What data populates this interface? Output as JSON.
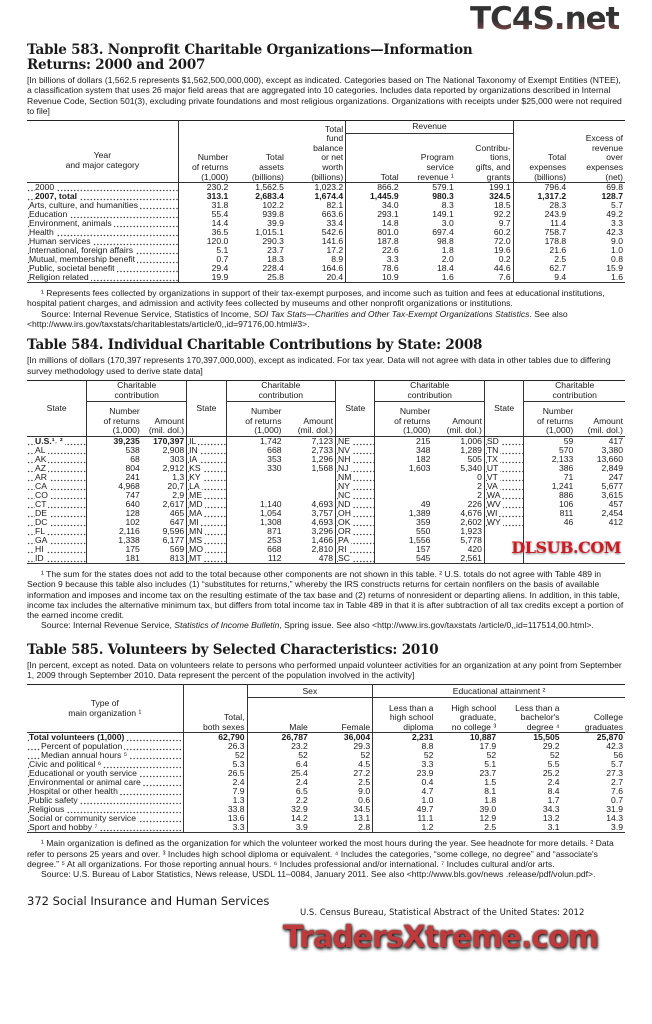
{
  "t583": {
    "title": "Table 583. Nonprofit Charitable Organizations—Information Returns: 2000 and 2007",
    "headnote": "[In billions of dollars (1,562.5 represents $1,562,500,000,000), except as indicated. Categories based on The National Taxonomy of Exempt Entities (NTEE), a classification system that uses 26 major field areas that are aggregated into 10 categories. Includes data reported by organizations described in Internal Revenue Code, Section 501(3), excluding private foundations and most religious organizations. Organizations with receipts under $25,000 were not required to file]",
    "h": {
      "label": "Year\nand major category",
      "returns": "Number\nof returns\n(1,000)",
      "assets": "Total\nassets\n(billions)",
      "fund": "Total\nfund\nbalance\nor net\nworth\n(billions)",
      "revenue": "Revenue",
      "rev_total": "Total",
      "program": "Program\nservice\nrevenue ¹",
      "contrib": "Contribu-\ntions,\ngifts, and\ngrants",
      "expenses": "Total\nexpenses\n(billions)",
      "excess": "Excess of\nrevenue\nover\nexpenses\n(net)"
    },
    "rows": [
      [
        "2000",
        "230.2",
        "1,562.5",
        "1,023.2",
        "866.2",
        "579.1",
        "199.1",
        "796.4",
        "69.8"
      ],
      [
        "2007, total",
        "313.1",
        "2,683.4",
        "1,674.4",
        "1,445.9",
        "980.3",
        "324.5",
        "1,317.2",
        "128.7"
      ],
      [
        "Arts, culture, and humanities",
        "31.8",
        "102.2",
        "82.1",
        "34.0",
        "8.3",
        "18.5",
        "28.3",
        "5.7"
      ],
      [
        "Education",
        "55.4",
        "939.8",
        "663.6",
        "293.1",
        "149.1",
        "92.2",
        "243.9",
        "49.2"
      ],
      [
        "Environment, animals",
        "14.4",
        "39.9",
        "33.4",
        "14.8",
        "3.0",
        "9.7",
        "11.4",
        "3.3"
      ],
      [
        "Health",
        "36.5",
        "1,015.1",
        "542.6",
        "801.0",
        "697.4",
        "60.2",
        "758.7",
        "42.3"
      ],
      [
        "Human services",
        "120.0",
        "290.3",
        "141.6",
        "187.8",
        "98.8",
        "72.0",
        "178.8",
        "9.0"
      ],
      [
        "International, foreign affairs",
        "5.1",
        "23.7",
        "17.2",
        "22.6",
        "1.8",
        "19.6",
        "21.6",
        "1.0"
      ],
      [
        "Mutual, membership benefit",
        "0.7",
        "18.3",
        "8.9",
        "3.3",
        "2.0",
        "0.2",
        "2.5",
        "0.8"
      ],
      [
        "Public, societal benefit",
        "29.4",
        "228.4",
        "164.6",
        "78.6",
        "18.4",
        "44.6",
        "62.7",
        "15.9"
      ],
      [
        "Religion related",
        "19.9",
        "25.8",
        "20.4",
        "10.9",
        "1.6",
        "7.6",
        "9.4",
        "1.6"
      ]
    ],
    "footnote": "¹ Represents fees collected by organizations in support of their tax-exempt purposes, and income such as tuition and fees at educational institutions, hospital patient charges, and admission and activity fees collected by museums and other nonprofit organizations or institutions.",
    "source_a": "Source: Internal Revenue Service, Statistics of Income, ",
    "source_i": "SOI Tax Stats—Charities and Other Tax-Exempt Organizations Statistics",
    "source_b": ". See also <http://www.irs.gov/taxstats/charitablestats/article/0,,id=97176,00.html#3>."
  },
  "t584": {
    "title": "Table 584. Individual Charitable Contributions by State: 2008",
    "headnote": "[In millions of dollars (170,397 represents 170,397,000,000), except as indicated. For tax year. Data will not agree with data in other tables due to differing survey methodology used to derive state data]",
    "h": {
      "state": "State",
      "group": "Charitable\ncontribution",
      "num": "Number\nof returns\n(1,000)",
      "amt": "Amount\n(mil. dol.)"
    },
    "rows": [
      [
        "U.S.¹˒ ²",
        "39,235",
        "170,397",
        "IL",
        "1,742",
        "7,123",
        "NE",
        "215",
        "1,006",
        "SD",
        "59",
        "417"
      ],
      [
        "AL",
        "538",
        "2,908",
        "IN",
        "668",
        "2,733",
        "NV",
        "348",
        "1,289",
        "TN",
        "570",
        "3,380"
      ],
      [
        "AK",
        "68",
        "303",
        "IA",
        "353",
        "1,296",
        "NH",
        "182",
        "505",
        "TX",
        "2,133",
        "13,660"
      ],
      [
        "AZ",
        "804",
        "2,912",
        "KS",
        "330",
        "1,568",
        "NJ",
        "1,603",
        "5,340",
        "UT",
        "386",
        "2,849"
      ],
      [
        "AR",
        "241",
        "1,3",
        "KY",
        "",
        "",
        "NM",
        "",
        "0",
        "VT",
        "71",
        "247"
      ],
      [
        "CA",
        "4,968",
        "20,7",
        "LA",
        "",
        "",
        "NY",
        "",
        "2",
        "VA",
        "1,241",
        "5,677"
      ],
      [
        "CO",
        "747",
        "2,9",
        "ME",
        "",
        "",
        "NC",
        "",
        "2",
        "WA",
        "886",
        "3,615"
      ],
      [
        "CT",
        "640",
        "2,617",
        "MD",
        "1,140",
        "4,693",
        "ND",
        "49",
        "226",
        "WV",
        "106",
        "457"
      ],
      [
        "DE",
        "128",
        "465",
        "MA",
        "1,054",
        "3,757",
        "OH",
        "1,389",
        "4,676",
        "WI",
        "811",
        "2,454"
      ],
      [
        "DC",
        "102",
        "647",
        "MI",
        "1,308",
        "4,693",
        "OK",
        "359",
        "2,602",
        "WY",
        "46",
        "412"
      ],
      [
        "FL",
        "2,116",
        "9,596",
        "MN",
        "871",
        "3,296",
        "OR",
        "550",
        "1,923",
        "",
        "",
        ""
      ],
      [
        "GA",
        "1,338",
        "6,177",
        "MS",
        "253",
        "1,466",
        "PA",
        "1,556",
        "5,778",
        "",
        "",
        ""
      ],
      [
        "HI",
        "175",
        "569",
        "MO",
        "668",
        "2,810",
        "RI",
        "157",
        "420",
        "",
        "",
        ""
      ],
      [
        "ID",
        "181",
        "813",
        "MT",
        "112",
        "478",
        "SC",
        "545",
        "2,561",
        "",
        "",
        ""
      ]
    ],
    "footnote": "¹ The sum for the states does not add to the total because other components are not shown in this table. ² U.S. totals do not agree with Table 489 in Section 9 because this table also includes (1) “substitutes for returns,” whereby the IRS constructs returns for certain nonfilers on the basis of available information and imposes and income tax on the resulting estimate of the tax base and (2) returns of nonresident or departing aliens. In addition, in this table, income tax includes the alternative minimum tax, but differs from total income tax in Table 489 in that it is after subtraction of all tax credits except a portion of the earned income credit.",
    "source_a": "Source: Internal Revenue Service, ",
    "source_i": "Statistics of Income Bulletin",
    "source_b": ", Spring issue. See also <http://www.irs.gov/taxstats /article/0,,id=117514,00.html>."
  },
  "t585": {
    "title": "Table 585. Volunteers by Selected Characteristics: 2010",
    "headnote": "[In percent, except as noted. Data on volunteers relate to persons who performed unpaid volunteer activities for an organization at any point from September 1, 2009 through September 2010. Data represent the percent of the population involved in the activity]",
    "h": {
      "label": "Type of\nmain organization ¹",
      "total": "Total,\nboth sexes",
      "sex": "Sex",
      "male": "Male",
      "female": "Female",
      "edu": "Educational attainment ²",
      "lths": "Less than a\nhigh school\ndiploma",
      "hs": "High school\ngraduate,\nno college ³",
      "ltb": "Less than a\nbachelor's\ndegree ⁴",
      "college": "College\ngraduates"
    },
    "rows": [
      [
        "Total volunteers (1,000)",
        "62,790",
        "26,787",
        "36,004",
        "2,231",
        "10,887",
        "15,505",
        "25,870"
      ],
      [
        "Percent of population",
        "26.3",
        "23.2",
        "29.3",
        "8.8",
        "17.9",
        "29.2",
        "42.3"
      ],
      [
        "Median annual hours ⁵",
        "52",
        "52",
        "52",
        "52",
        "52",
        "52",
        "56"
      ],
      [
        "Civic and political ⁶",
        "5.3",
        "6.4",
        "4.5",
        "3.3",
        "5.1",
        "5.5",
        "5.7"
      ],
      [
        "Educational or youth service",
        "26.5",
        "25.4",
        "27.2",
        "23.9",
        "23.7",
        "25.2",
        "27.3"
      ],
      [
        "Environmental or animal care",
        "2.4",
        "2.4",
        "2.5",
        "0.4",
        "1.5",
        "2.4",
        "2.7"
      ],
      [
        "Hospital or other health",
        "7.9",
        "6.5",
        "9.0",
        "4.7",
        "8.1",
        "8.4",
        "7.6"
      ],
      [
        "Public safety",
        "1.3",
        "2.2",
        "0.6",
        "1.0",
        "1.8",
        "1.7",
        "0.7"
      ],
      [
        "Religious",
        "33.8",
        "32.9",
        "34.5",
        "49.7",
        "39.0",
        "34.3",
        "31.9"
      ],
      [
        "Social or community service",
        "13.6",
        "14.2",
        "13.1",
        "11.1",
        "12.9",
        "13.2",
        "14.3"
      ],
      [
        "Sport and hobby ⁷",
        "3.3",
        "3.9",
        "2.8",
        "1.2",
        "2.5",
        "3.1",
        "3.9"
      ]
    ],
    "footnote": "¹ Main organization is defined as the organization for which the volunteer worked the most hours during the year. See headnote for more details. ² Data refer to persons 25 years and over. ³ Includes high school diploma or equivalent. ⁴ Includes the categories, “some college, no degree” and “associate's degree.” ⁵ At all organizations. For those reporting annual hours. ⁶ Includes professional and/or international. ⁷ Includes cultural and/or arts.",
    "source": "Source: U.S. Bureau of Labor Statistics, News release, USDL 11–0084, January 2011. See also <http://www.bls.gov/news .release/pdf/volun.pdf>."
  },
  "footer": {
    "page": "372  Social Insurance and Human Services",
    "publication": "U.S. Census Bureau, Statistical Abstract of the United States: 2012"
  },
  "watermarks": {
    "top": "TC4S.net",
    "middle": "DLSUB.COM",
    "bottom": "TradersXtreme.com"
  }
}
